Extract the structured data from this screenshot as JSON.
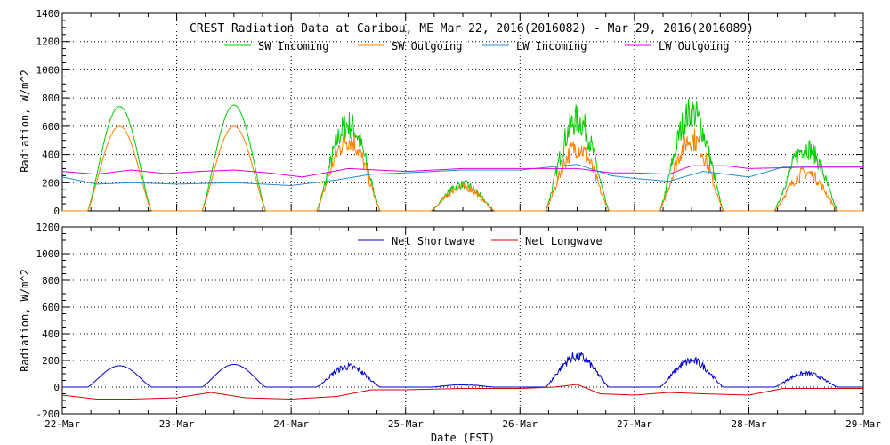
{
  "chart_data": [
    {
      "type": "line",
      "title": "CREST Radiation Data at Caribou, ME   Mar 22, 2016(2016082) - Mar 29, 2016(2016089)",
      "xlabel": "",
      "ylabel": "Radiation, W/m^2",
      "xlim": [
        "22-Mar",
        "29-Mar"
      ],
      "ylim": [
        0,
        1400
      ],
      "yticks": [
        0,
        200,
        400,
        600,
        800,
        1000,
        1200,
        1400
      ],
      "xticks": [
        "22-Mar",
        "23-Mar",
        "24-Mar",
        "25-Mar",
        "26-Mar",
        "27-Mar",
        "28-Mar",
        "29-Mar"
      ],
      "grid": true,
      "legend": "top",
      "series": [
        {
          "name": "SW Incoming",
          "color": "#00cc00",
          "days": [
            {
              "peak": 740
            },
            {
              "peak": 750
            },
            {
              "peak": 720
            },
            {
              "peak": 220
            },
            {
              "peak": 760
            },
            {
              "peak": 820
            },
            {
              "peak": 530
            }
          ]
        },
        {
          "name": "SW Outgoing",
          "color": "#ff7f00",
          "days": [
            {
              "peak": 600
            },
            {
              "peak": 600
            },
            {
              "peak": 600
            },
            {
              "peak": 200
            },
            {
              "peak": 530
            },
            {
              "peak": 600
            },
            {
              "peak": 320
            }
          ]
        },
        {
          "name": "LW Incoming",
          "color": "#1f8fcf",
          "points": [
            [
              0,
              240
            ],
            [
              0.3,
              190
            ],
            [
              0.6,
              200
            ],
            [
              1.0,
              190
            ],
            [
              1.5,
              200
            ],
            [
              2.0,
              180
            ],
            [
              2.4,
              220
            ],
            [
              2.7,
              260
            ],
            [
              3.0,
              270
            ],
            [
              3.5,
              290
            ],
            [
              4.0,
              290
            ],
            [
              4.5,
              330
            ],
            [
              4.8,
              250
            ],
            [
              5.0,
              230
            ],
            [
              5.3,
              210
            ],
            [
              5.6,
              280
            ],
            [
              6.0,
              240
            ],
            [
              6.3,
              310
            ],
            [
              7.0,
              310
            ]
          ]
        },
        {
          "name": "LW Outgoing",
          "color": "#e000e0",
          "points": [
            [
              0,
              280
            ],
            [
              0.3,
              260
            ],
            [
              0.6,
              290
            ],
            [
              0.9,
              265
            ],
            [
              1.2,
              280
            ],
            [
              1.5,
              290
            ],
            [
              1.8,
              270
            ],
            [
              2.1,
              240
            ],
            [
              2.5,
              300
            ],
            [
              3.0,
              280
            ],
            [
              3.5,
              300
            ],
            [
              3.9,
              300
            ],
            [
              4.5,
              300
            ],
            [
              4.8,
              270
            ],
            [
              5.0,
              270
            ],
            [
              5.3,
              260
            ],
            [
              5.5,
              320
            ],
            [
              5.8,
              320
            ],
            [
              6.0,
              300
            ],
            [
              6.5,
              310
            ],
            [
              7.0,
              310
            ]
          ]
        }
      ]
    },
    {
      "type": "line",
      "title": "",
      "xlabel": "Date (EST)",
      "ylabel": "Radiation, W/m^2",
      "xlim": [
        "22-Mar",
        "29-Mar"
      ],
      "ylim": [
        -200,
        1200
      ],
      "yticks": [
        -200,
        0,
        200,
        400,
        600,
        800,
        1000,
        1200
      ],
      "xticks": [
        "22-Mar",
        "23-Mar",
        "24-Mar",
        "25-Mar",
        "26-Mar",
        "27-Mar",
        "28-Mar",
        "29-Mar"
      ],
      "grid": true,
      "legend": "top",
      "series": [
        {
          "name": "Net Shortwave",
          "color": "#0000cc",
          "days": [
            {
              "peak": 160
            },
            {
              "peak": 170
            },
            {
              "peak": 180
            },
            {
              "peak": 20
            },
            {
              "peak": 270
            },
            {
              "peak": 230
            },
            {
              "peak": 120
            }
          ]
        },
        {
          "name": "Net Longwave",
          "color": "#dd0000",
          "points": [
            [
              0,
              -60
            ],
            [
              0.3,
              -90
            ],
            [
              0.6,
              -90
            ],
            [
              1.0,
              -80
            ],
            [
              1.3,
              -40
            ],
            [
              1.6,
              -80
            ],
            [
              2.0,
              -90
            ],
            [
              2.4,
              -70
            ],
            [
              2.7,
              -20
            ],
            [
              3.0,
              -20
            ],
            [
              3.5,
              -10
            ],
            [
              4.0,
              -10
            ],
            [
              4.3,
              0
            ],
            [
              4.5,
              20
            ],
            [
              4.7,
              -50
            ],
            [
              5.0,
              -60
            ],
            [
              5.3,
              -40
            ],
            [
              5.6,
              -50
            ],
            [
              6.0,
              -60
            ],
            [
              6.3,
              -10
            ],
            [
              7.0,
              -10
            ]
          ]
        }
      ]
    }
  ]
}
